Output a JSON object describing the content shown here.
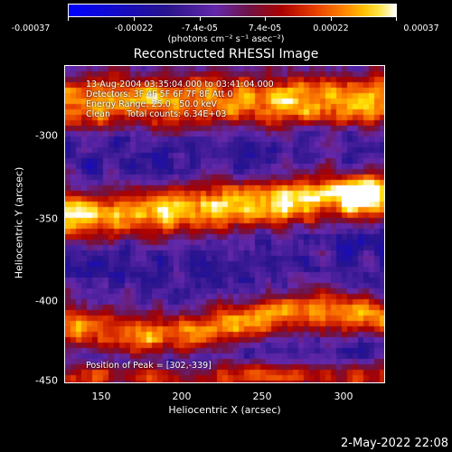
{
  "colorbar": {
    "ticks": [
      "-0.00037",
      "-0.00022",
      "-7.4e-05",
      "7.4e-05",
      "0.00022",
      "0.00037"
    ],
    "units": "(photons cm⁻² s⁻¹ asec⁻²)"
  },
  "title": "Reconstructed RHESSI Image",
  "info": {
    "time": "13-Aug-2004 03:35:04.000 to 03:41:04.000",
    "detectors": "Detectors: 3F 4F 5F 6F 7F 8F Att 0",
    "energy": "Energy Range: 25.0 - 50.0 keV",
    "clean": "Clean      Total counts: 6.34E+03",
    "peak": "Position of Peak = [302,-339]"
  },
  "axes": {
    "xlabel": "Heliocentric X (arcsec)",
    "ylabel": "Heliocentric Y (arcsec)",
    "xticks": [
      "150",
      "200",
      "250",
      "300"
    ],
    "yticks": [
      "-300",
      "-350",
      "-400",
      "-450"
    ]
  },
  "stamp": "2-May-2022 22:08",
  "colors": {
    "low": "#0000ff",
    "mid": "#400080",
    "high": "#ffff00",
    "top": "#ffffff"
  }
}
